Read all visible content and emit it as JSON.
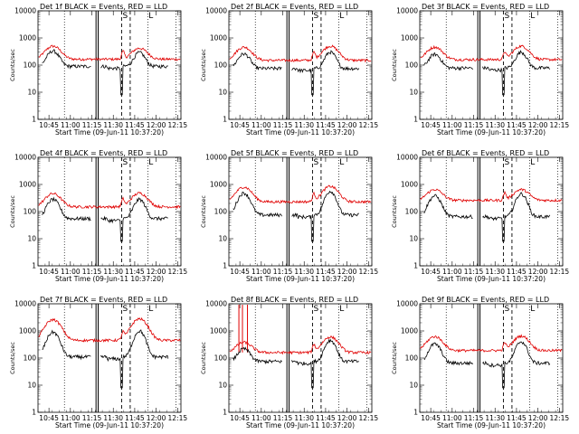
{
  "chart_data": {
    "type": "line",
    "grid": false,
    "ylabel": "Counts/sec",
    "yscale": "log",
    "ylim": [
      1,
      10000
    ],
    "yticks": [
      "1",
      "10",
      "100",
      "1000",
      "10000"
    ],
    "xticks": [
      "10:45",
      "11:00",
      "11:15",
      "11:30",
      "11:45",
      "12:00",
      "12:15"
    ],
    "xlim_minutes": [
      0,
      100
    ],
    "xlabel": "Start Time (09-Jun-11 10:37:20)",
    "title_suffix": " BLACK = Events, RED = LLD",
    "markers": {
      "dotted": [
        18.5,
        77.0,
        96.5
      ],
      "solid": [
        40.6,
        42.1
      ],
      "dashed": [
        58.5,
        64.5
      ],
      "labels": [
        {
          "x": 61.0,
          "text": "S"
        },
        {
          "x": 79.0,
          "text": "L"
        }
      ]
    },
    "colors": {
      "events": "#000000",
      "lld": "#e00000"
    },
    "panels": [
      {
        "title": "Det 1f",
        "events": {
          "base": 90,
          "p1": 330,
          "gap": 8,
          "p2": 290
        },
        "lld": {
          "base": 165,
          "p1": 500,
          "p2": 420
        }
      },
      {
        "title": "Det 2f",
        "events": {
          "base": 75,
          "p1": 260,
          "gap": 8,
          "p2": 300
        },
        "lld": {
          "base": 150,
          "p1": 460,
          "p2": 500
        }
      },
      {
        "title": "Det 3f",
        "events": {
          "base": 78,
          "p1": 250,
          "gap": 8,
          "p2": 300
        },
        "lld": {
          "base": 160,
          "p1": 460,
          "p2": 500
        }
      },
      {
        "title": "Det 4f",
        "events": {
          "base": 55,
          "p1": 280,
          "gap": 8,
          "p2": 280
        },
        "lld": {
          "base": 150,
          "p1": 460,
          "p2": 480
        }
      },
      {
        "title": "Det 5f",
        "events": {
          "base": 75,
          "p1": 480,
          "gap": 8,
          "p2": 560
        },
        "lld": {
          "base": 230,
          "p1": 800,
          "p2": 850
        }
      },
      {
        "title": "Det 6f",
        "events": {
          "base": 65,
          "p1": 380,
          "gap": 8,
          "p2": 450
        },
        "lld": {
          "base": 260,
          "p1": 650,
          "p2": 650
        }
      },
      {
        "title": "Det 7f",
        "events": {
          "base": 110,
          "p1": 900,
          "gap": 8,
          "p2": 1000
        },
        "lld": {
          "base": 450,
          "p1": 2600,
          "p2": 2800
        }
      },
      {
        "title": "Det 8f",
        "events": {
          "base": 75,
          "p1": 220,
          "gap": 8,
          "p2": 450
        },
        "lld": {
          "base": 160,
          "p1": 380,
          "p2": 600,
          "spike": true
        }
      },
      {
        "title": "Det 9f",
        "events": {
          "base": 65,
          "p1": 330,
          "gap": 8,
          "p2": 400
        },
        "lld": {
          "base": 190,
          "p1": 620,
          "p2": 650
        }
      }
    ]
  }
}
